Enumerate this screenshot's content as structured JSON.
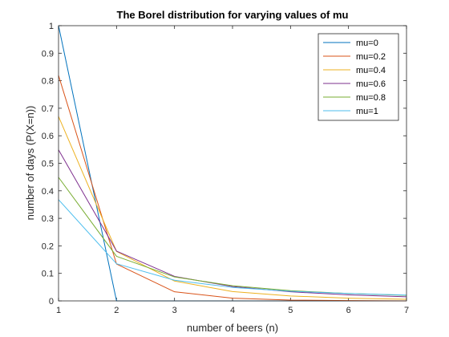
{
  "chart_data": {
    "type": "line",
    "title": "The Borel distribution for varying values of mu",
    "xlabel": "number of beers (n)",
    "ylabel": "number of days (P(X=n))",
    "x": [
      1,
      2,
      3,
      4,
      5,
      6,
      7
    ],
    "xlim": [
      1,
      7
    ],
    "ylim": [
      0,
      1
    ],
    "xticks": [
      "1",
      "2",
      "3",
      "4",
      "5",
      "6",
      "7"
    ],
    "yticks": [
      "0",
      "0.1",
      "0.2",
      "0.3",
      "0.4",
      "0.5",
      "0.6",
      "0.7",
      "0.8",
      "0.9",
      "1"
    ],
    "grid": false,
    "legend_position": "top-right",
    "series": [
      {
        "name": "mu=0",
        "color": "#0072BD",
        "values": [
          1.0,
          0.0,
          0.0,
          0.0,
          0.0,
          0.0,
          0.0
        ]
      },
      {
        "name": "mu=0.2",
        "color": "#D95319",
        "values": [
          0.819,
          0.134,
          0.033,
          0.01,
          0.003,
          0.001,
          0.0
        ]
      },
      {
        "name": "mu=0.4",
        "color": "#EDB120",
        "values": [
          0.67,
          0.18,
          0.072,
          0.034,
          0.018,
          0.01,
          0.006
        ]
      },
      {
        "name": "mu=0.6",
        "color": "#7E2F8E",
        "values": [
          0.549,
          0.181,
          0.089,
          0.052,
          0.033,
          0.022,
          0.015
        ]
      },
      {
        "name": "mu=0.8",
        "color": "#77AC30",
        "values": [
          0.449,
          0.162,
          0.087,
          0.055,
          0.037,
          0.027,
          0.02
        ]
      },
      {
        "name": "mu=1",
        "color": "#4DBEEE",
        "values": [
          0.368,
          0.135,
          0.075,
          0.049,
          0.035,
          0.027,
          0.021
        ]
      }
    ]
  }
}
